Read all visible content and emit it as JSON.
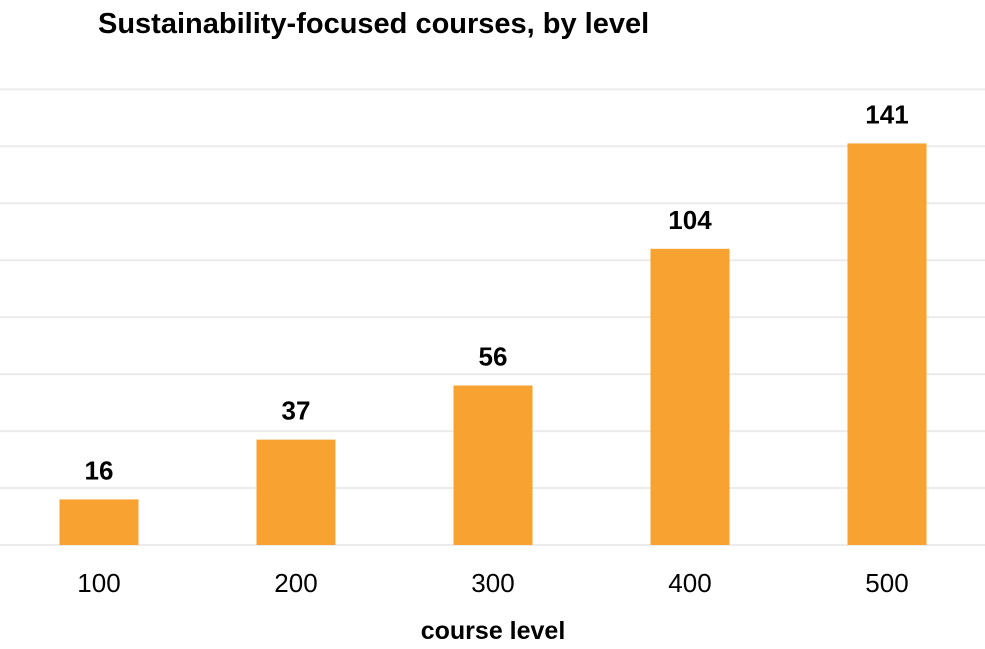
{
  "chart_data": {
    "type": "bar",
    "title": "Sustainability-focused courses, by level",
    "xlabel": "course level",
    "ylabel": "",
    "categories": [
      "100",
      "200",
      "300",
      "400",
      "500"
    ],
    "values": [
      16,
      37,
      56,
      104,
      141
    ],
    "ylim": [
      0,
      160
    ],
    "grid": true,
    "bar_color": "#f7a231",
    "data_labels": true
  }
}
